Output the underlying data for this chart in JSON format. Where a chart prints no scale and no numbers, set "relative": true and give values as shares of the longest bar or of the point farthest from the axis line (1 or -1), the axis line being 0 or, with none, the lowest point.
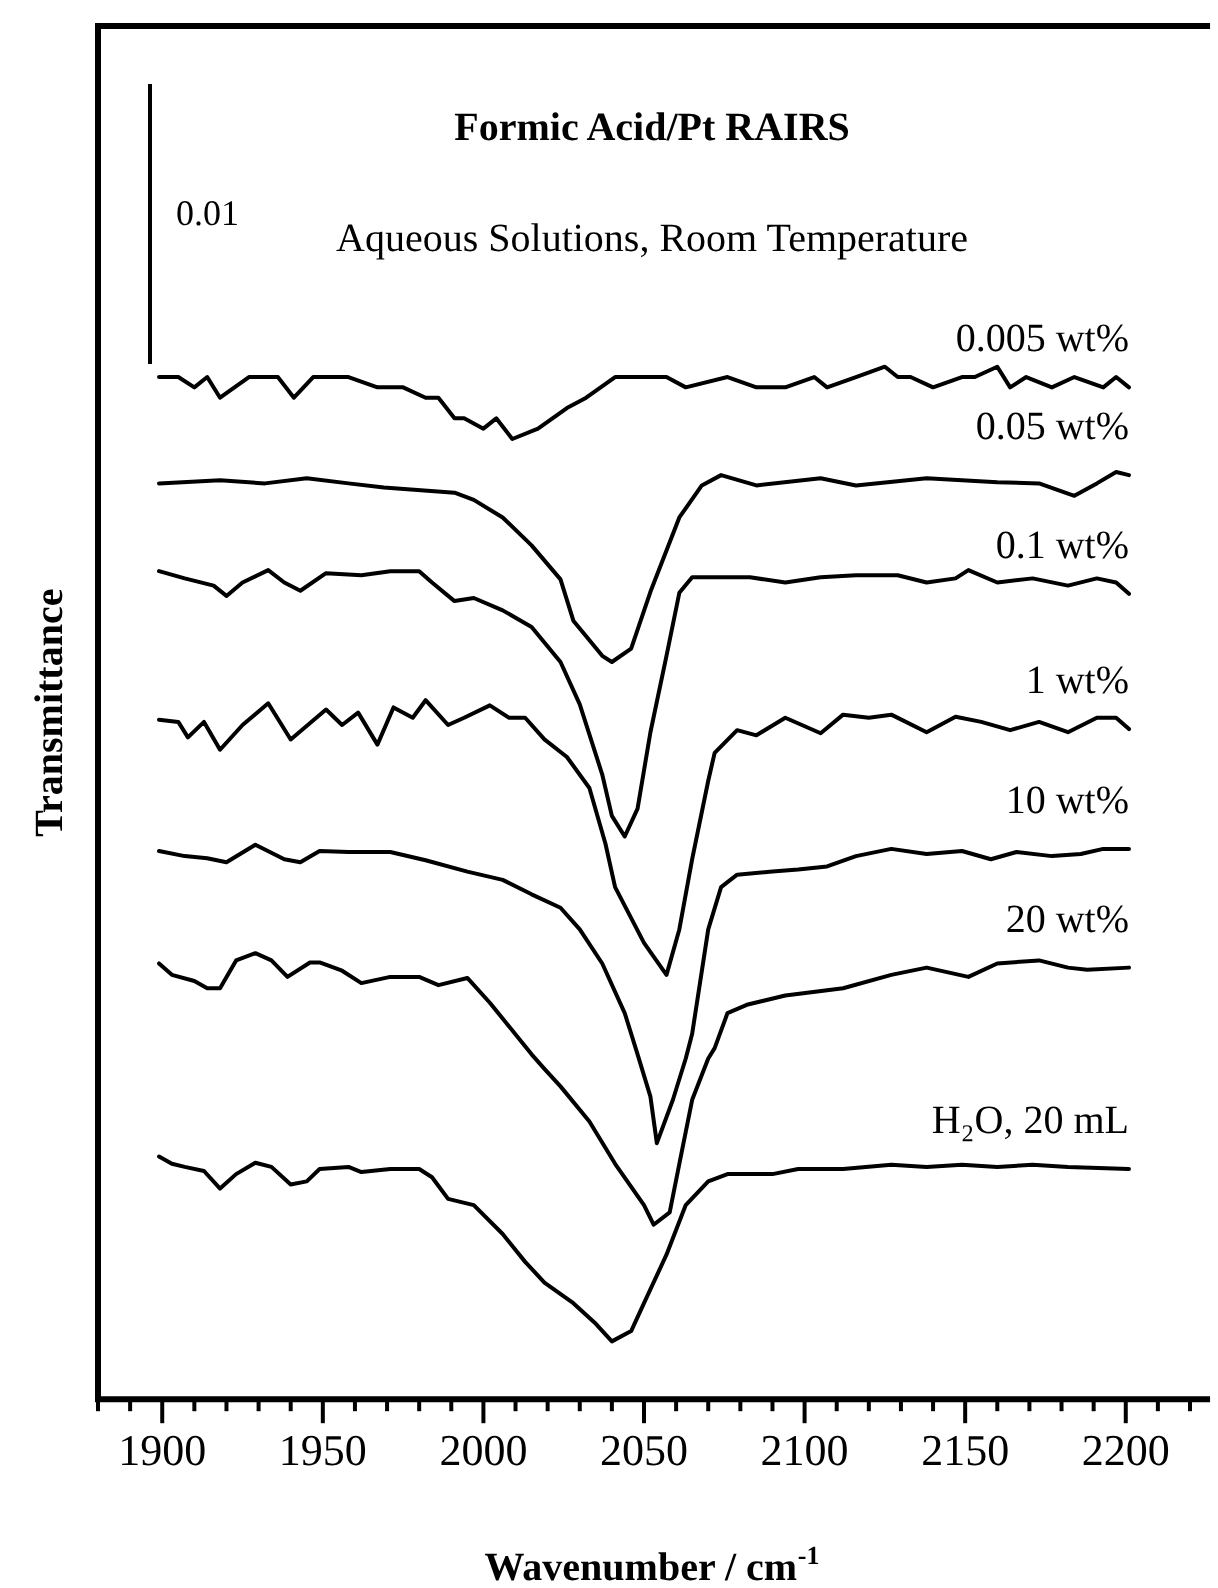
{
  "chart_data": {
    "type": "line",
    "title": "Formic Acid/Pt RAIRS",
    "subtitle": "Aqueous Solutions, Room Temperature",
    "xlabel": "Wavenumber / cm$^{-1}$",
    "ylabel": "Transmittance",
    "annotations": [
      "0.01"
    ],
    "relative": true,
    "grid": false,
    "legend": false,
    "marker": "none",
    "line_style": "solid",
    "xlim": [
      1880,
      2225
    ],
    "xticks": [
      {
        "value": 1880,
        "label": null
      },
      {
        "value": 1890,
        "label": null
      },
      1900,
      {
        "value": 1910,
        "label": null
      },
      {
        "value": 1920,
        "label": null
      },
      {
        "value": 1930,
        "label": null
      },
      {
        "value": 1940,
        "label": null
      },
      1950,
      {
        "value": 1960,
        "label": null
      },
      {
        "value": 1970,
        "label": null
      },
      {
        "value": 1980,
        "label": null
      },
      {
        "value": 1990,
        "label": null
      },
      2000,
      {
        "value": 2010,
        "label": null
      },
      {
        "value": 2020,
        "label": null
      },
      {
        "value": 2030,
        "label": null
      },
      {
        "value": 2040,
        "label": null
      },
      2050,
      {
        "value": 2060,
        "label": null
      },
      {
        "value": 2070,
        "label": null
      },
      {
        "value": 2080,
        "label": null
      },
      {
        "value": 2090,
        "label": null
      },
      2100,
      {
        "value": 2110,
        "label": null
      },
      {
        "value": 2120,
        "label": null
      },
      {
        "value": 2130,
        "label": null
      },
      {
        "value": 2140,
        "label": null
      },
      2150,
      {
        "value": 2160,
        "label": null
      },
      {
        "value": 2170,
        "label": null
      },
      {
        "value": 2180,
        "label": null
      },
      {
        "value": 2190,
        "label": null
      },
      2200,
      {
        "value": 2210,
        "label": null
      },
      {
        "value": 2220,
        "label": null
      }
    ],
    "series": [
      {
        "name": "0.005 wt%",
        "color": "#000000",
        "x": [
          1899,
          1905,
          1910,
          1914,
          1918,
          1927,
          1936,
          1941,
          1947,
          1958,
          1967,
          1975,
          1982,
          1986,
          1991,
          1994,
          2000,
          2004,
          2009,
          2017,
          2026,
          2032,
          2041,
          2057,
          2063,
          2076,
          2085,
          2094,
          2103,
          2107,
          2116,
          2125,
          2129,
          2133,
          2140,
          2149,
          2153,
          2160,
          2164,
          2169,
          2177,
          2184,
          2193,
          2197,
          2201
        ],
        "values": [
          0.99,
          0.99,
          0.98,
          0.99,
          0.97,
          0.99,
          0.99,
          0.97,
          0.99,
          0.99,
          0.98,
          0.98,
          0.97,
          0.97,
          0.95,
          0.95,
          0.94,
          0.95,
          0.93,
          0.94,
          0.96,
          0.97,
          0.99,
          0.99,
          0.98,
          0.99,
          0.98,
          0.98,
          0.99,
          0.98,
          0.99,
          1.0,
          0.99,
          0.99,
          0.98,
          0.99,
          0.99,
          1.0,
          0.98,
          0.99,
          0.98,
          0.99,
          0.98,
          0.99,
          0.98
        ]
      },
      {
        "name": "0.05 wt%",
        "color": "#000000",
        "x": [
          1899,
          1918,
          1932,
          1945,
          1958,
          1969,
          1991,
          1997,
          2006,
          2015,
          2024,
          2028,
          2037,
          2040,
          2046,
          2052,
          2061,
          2068,
          2074,
          2085,
          2105,
          2116,
          2138,
          2160,
          2173,
          2184,
          2191,
          2197,
          2201
        ],
        "values": [
          0.887,
          0.89,
          0.887,
          0.892,
          0.887,
          0.883,
          0.878,
          0.871,
          0.854,
          0.827,
          0.794,
          0.754,
          0.72,
          0.714,
          0.727,
          0.782,
          0.854,
          0.885,
          0.895,
          0.885,
          0.892,
          0.885,
          0.892,
          0.888,
          0.887,
          0.875,
          0.887,
          0.898,
          0.895
        ]
      },
      {
        "name": "0.1 wt%",
        "color": "#000000",
        "x": [
          1899,
          1907,
          1916,
          1920,
          1925,
          1933,
          1938,
          1943,
          1951,
          1962,
          1971,
          1980,
          1984,
          1991,
          1997,
          2006,
          2015,
          2024,
          2030,
          2037,
          2040,
          2044,
          2048,
          2052,
          2057,
          2061,
          2065,
          2072,
          2083,
          2094,
          2105,
          2116,
          2129,
          2138,
          2147,
          2151,
          2160,
          2171,
          2182,
          2191,
          2197,
          2201
        ],
        "values": [
          0.802,
          0.795,
          0.788,
          0.778,
          0.791,
          0.803,
          0.791,
          0.783,
          0.8,
          0.798,
          0.802,
          0.802,
          0.791,
          0.773,
          0.776,
          0.764,
          0.748,
          0.714,
          0.673,
          0.605,
          0.565,
          0.545,
          0.572,
          0.646,
          0.72,
          0.781,
          0.796,
          0.796,
          0.796,
          0.791,
          0.796,
          0.798,
          0.798,
          0.791,
          0.795,
          0.803,
          0.791,
          0.795,
          0.788,
          0.795,
          0.791,
          0.78
        ]
      },
      {
        "name": "1 wt%",
        "color": "#000000",
        "x": [
          1899,
          1905,
          1908,
          1913,
          1918,
          1925,
          1933,
          1940,
          1951,
          1956,
          1961,
          1967,
          1972,
          1978,
          1982,
          1989,
          1994,
          2002,
          2008,
          2013,
          2019,
          2026,
          2033,
          2038,
          2041,
          2050,
          2057,
          2061,
          2065,
          2070,
          2072,
          2079,
          2085,
          2094,
          2105,
          2112,
          2120,
          2127,
          2138,
          2147,
          2155,
          2164,
          2173,
          2182,
          2191,
          2197,
          2201
        ],
        "values": [
          0.658,
          0.656,
          0.641,
          0.656,
          0.629,
          0.653,
          0.674,
          0.639,
          0.668,
          0.653,
          0.665,
          0.634,
          0.67,
          0.66,
          0.677,
          0.653,
          0.66,
          0.672,
          0.66,
          0.66,
          0.639,
          0.622,
          0.592,
          0.538,
          0.496,
          0.442,
          0.411,
          0.455,
          0.523,
          0.599,
          0.626,
          0.648,
          0.643,
          0.66,
          0.645,
          0.663,
          0.66,
          0.663,
          0.646,
          0.661,
          0.656,
          0.648,
          0.656,
          0.646,
          0.66,
          0.66,
          0.649
        ]
      },
      {
        "name": "10 wt%",
        "color": "#000000",
        "x": [
          1899,
          1907,
          1914,
          1920,
          1929,
          1938,
          1943,
          1949,
          1958,
          1971,
          1982,
          1995,
          2006,
          2015,
          2024,
          2030,
          2037,
          2044,
          2048,
          2052,
          2054,
          2059,
          2063,
          2065,
          2070,
          2074,
          2079,
          2090,
          2098,
          2107,
          2116,
          2127,
          2138,
          2149,
          2158,
          2166,
          2177,
          2186,
          2193,
          2201
        ],
        "values": [
          0.531,
          0.526,
          0.524,
          0.52,
          0.537,
          0.523,
          0.52,
          0.531,
          0.53,
          0.53,
          0.522,
          0.511,
          0.503,
          0.489,
          0.476,
          0.455,
          0.422,
          0.374,
          0.334,
          0.293,
          0.248,
          0.29,
          0.33,
          0.354,
          0.455,
          0.496,
          0.508,
          0.511,
          0.513,
          0.516,
          0.526,
          0.533,
          0.528,
          0.531,
          0.523,
          0.53,
          0.526,
          0.528,
          0.533,
          0.533
        ]
      },
      {
        "name": "20 wt%",
        "color": "#000000",
        "x": [
          1899,
          1903,
          1910,
          1914,
          1918,
          1923,
          1929,
          1934,
          1939,
          1946,
          1949,
          1956,
          1962,
          1971,
          1980,
          1986,
          1995,
          2002,
          2008,
          2015,
          2019,
          2024,
          2033,
          2041,
          2050,
          2053,
          2058,
          2061,
          2065,
          2070,
          2072,
          2076,
          2082,
          2094,
          2112,
          2127,
          2138,
          2151,
          2160,
          2173,
          2182,
          2188,
          2201
        ],
        "values": [
          0.422,
          0.411,
          0.405,
          0.398,
          0.398,
          0.425,
          0.432,
          0.425,
          0.409,
          0.423,
          0.423,
          0.415,
          0.403,
          0.409,
          0.409,
          0.401,
          0.408,
          0.384,
          0.361,
          0.334,
          0.32,
          0.303,
          0.269,
          0.228,
          0.188,
          0.169,
          0.181,
          0.228,
          0.29,
          0.33,
          0.34,
          0.374,
          0.382,
          0.391,
          0.398,
          0.411,
          0.418,
          0.409,
          0.422,
          0.425,
          0.418,
          0.416,
          0.418
        ]
      },
      {
        "name": "H₂O, 20 mL",
        "color": "#000000",
        "x": [
          1899,
          1903,
          1907,
          1913,
          1918,
          1923,
          1929,
          1934,
          1940,
          1945,
          1949,
          1958,
          1962,
          1971,
          1980,
          1984,
          1989,
          1997,
          2006,
          2013,
          2019,
          2028,
          2035,
          2040,
          2046,
          2050,
          2057,
          2063,
          2070,
          2076,
          2090,
          2098,
          2112,
          2127,
          2138,
          2149,
          2160,
          2171,
          2182,
          2201
        ],
        "values": [
          0.235,
          0.228,
          0.225,
          0.221,
          0.204,
          0.218,
          0.229,
          0.225,
          0.208,
          0.211,
          0.223,
          0.225,
          0.22,
          0.223,
          0.223,
          0.215,
          0.194,
          0.188,
          0.16,
          0.133,
          0.113,
          0.093,
          0.073,
          0.056,
          0.066,
          0.093,
          0.14,
          0.188,
          0.211,
          0.218,
          0.218,
          0.223,
          0.223,
          0.227,
          0.225,
          0.227,
          0.225,
          0.227,
          0.225,
          0.223
        ]
      }
    ]
  }
}
